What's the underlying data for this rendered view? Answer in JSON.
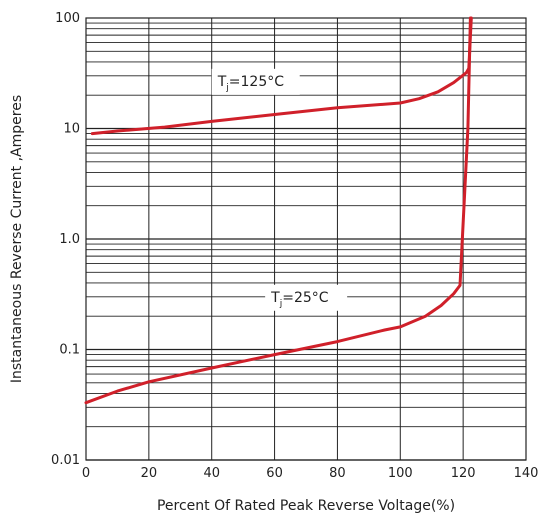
{
  "chart_data": {
    "type": "line",
    "title": "",
    "xlabel": "Percent Of Rated Peak Reverse Voltage(%)",
    "ylabel": "Instantaneous Reverse Current ,Amperes",
    "xlim": [
      0,
      140
    ],
    "ylim": [
      0.01,
      100
    ],
    "yscale": "log",
    "grid": true,
    "x_ticks": [
      0,
      20,
      40,
      60,
      80,
      100,
      120,
      140
    ],
    "x_tick_labels": [
      "0",
      "20",
      "40",
      "60",
      "80",
      "100",
      "120",
      "140"
    ],
    "y_ticks": [
      0.01,
      0.1,
      1,
      10,
      100
    ],
    "y_tick_labels": [
      "0.01",
      "0.1",
      "1.0",
      "10",
      "100"
    ],
    "line_color": "#d0202a",
    "series": [
      {
        "label_main": "T",
        "label_sub": "j",
        "label_rest": "=125°C",
        "points": [
          [
            2,
            9.0
          ],
          [
            10,
            9.5
          ],
          [
            25,
            10.3
          ],
          [
            40,
            11.6
          ],
          [
            60,
            13.4
          ],
          [
            80,
            15.4
          ],
          [
            100,
            17.0
          ],
          [
            106,
            18.6
          ],
          [
            112,
            21.5
          ],
          [
            117,
            26
          ],
          [
            121,
            32
          ],
          [
            121.8,
            35
          ],
          [
            122.6,
            100
          ]
        ]
      },
      {
        "label_main": "T",
        "label_sub": "j",
        "label_rest": "=25°C",
        "points": [
          [
            0,
            0.033
          ],
          [
            10,
            0.042
          ],
          [
            20,
            0.051
          ],
          [
            40,
            0.068
          ],
          [
            60,
            0.09
          ],
          [
            80,
            0.118
          ],
          [
            95,
            0.15
          ],
          [
            100,
            0.16
          ],
          [
            108,
            0.2
          ],
          [
            113,
            0.25
          ],
          [
            117,
            0.32
          ],
          [
            119,
            0.38
          ],
          [
            121.5,
            10
          ],
          [
            122.3,
            100
          ]
        ]
      }
    ]
  }
}
